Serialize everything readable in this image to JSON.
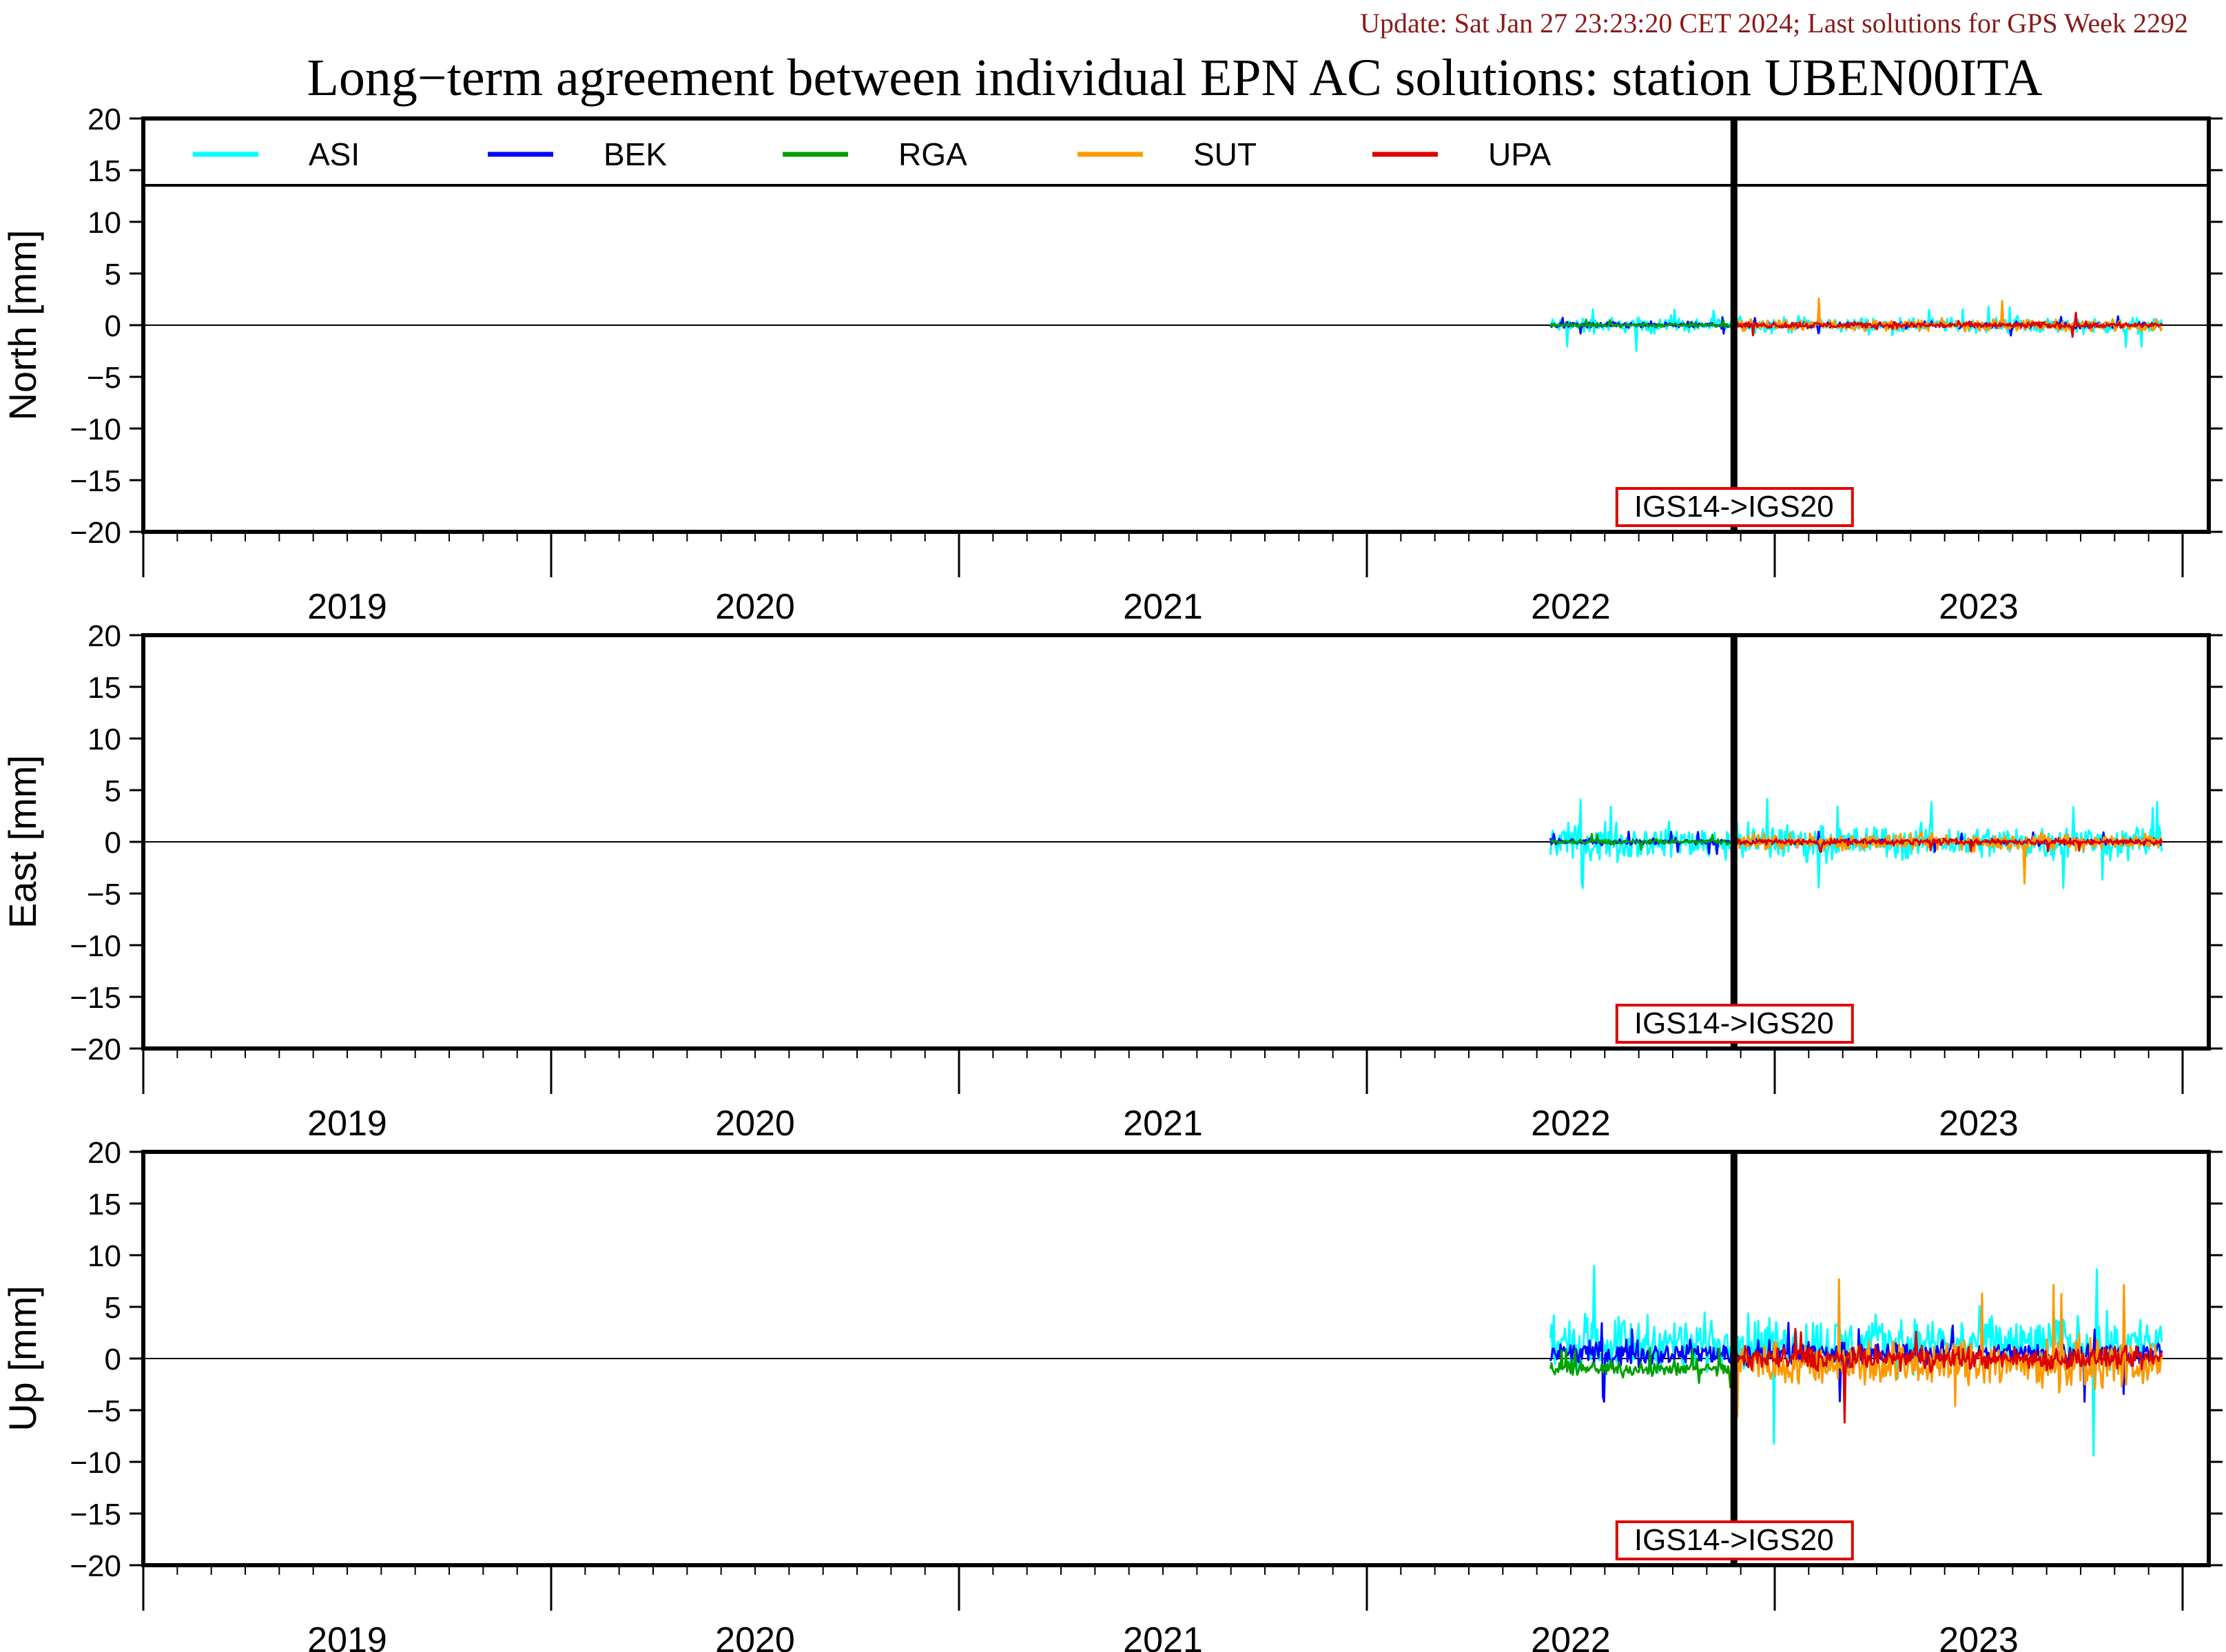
{
  "header": {
    "update_text": "Update: Sat Jan 27 23:23:20 CET 2024; Last solutions for GPS Week 2292",
    "title": "Long−term agreement between individual EPN AC solutions: station UBEN00ITA"
  },
  "colors": {
    "ASI": "#00ffff",
    "BEK": "#0000ff",
    "RGA": "#00a000",
    "SUT": "#ff9900",
    "UPA": "#dd0000",
    "update_text": "#8b1a1a",
    "annotation_box": "#e00000"
  },
  "chart_data": [
    {
      "type": "line",
      "ylabel": "North [mm]",
      "ylim": [
        -20,
        20
      ],
      "yticks": [
        20,
        15,
        10,
        5,
        0,
        -5,
        -10,
        -15,
        -20
      ],
      "ytick_labels": [
        "20",
        "15",
        "10",
        "5",
        "0",
        "−5",
        "−10",
        "−15",
        "−20"
      ],
      "xlim": [
        2018.5,
        2023.5
      ],
      "xtick_labels": [
        "2019",
        "2020",
        "2021",
        "2022",
        "2023"
      ],
      "legend": {
        "placement": "top",
        "entries": [
          "ASI",
          "BEK",
          "RGA",
          "SUT",
          "UPA"
        ]
      },
      "annotation": {
        "text": "IGS14->IGS20",
        "x": 2022.4
      },
      "series": [
        {
          "name": "ASI",
          "x_start": 2021.95,
          "x_end": 2023.45,
          "mean": 0,
          "amplitude": 1.0,
          "spike_min": -2.5,
          "spike_max": 1.8
        },
        {
          "name": "BEK",
          "x_start": 2021.95,
          "x_end": 2023.45,
          "mean": 0,
          "amplitude": 0.4,
          "spike_min": -1.0,
          "spike_max": 0.9
        },
        {
          "name": "RGA",
          "x_start": 2021.95,
          "x_end": 2022.4,
          "mean": 0,
          "amplitude": 0.3,
          "spike_min": -0.6,
          "spike_max": 0.6
        },
        {
          "name": "SUT",
          "x_start": 2022.4,
          "x_end": 2023.45,
          "mean": 0,
          "amplitude": 0.7,
          "spike_min": -1.5,
          "spike_max": 2.8
        },
        {
          "name": "UPA",
          "x_start": 2022.4,
          "x_end": 2023.45,
          "mean": 0,
          "amplitude": 0.4,
          "spike_min": -1.2,
          "spike_max": 1.5
        }
      ]
    },
    {
      "type": "line",
      "ylabel": "East [mm]",
      "ylim": [
        -20,
        20
      ],
      "yticks": [
        20,
        15,
        10,
        5,
        0,
        -5,
        -10,
        -15,
        -20
      ],
      "ytick_labels": [
        "20",
        "15",
        "10",
        "5",
        "0",
        "−5",
        "−10",
        "−15",
        "−20"
      ],
      "xlim": [
        2018.5,
        2023.5
      ],
      "xtick_labels": [
        "2019",
        "2020",
        "2021",
        "2022",
        "2023"
      ],
      "annotation": {
        "text": "IGS14->IGS20",
        "x": 2022.4
      },
      "series": [
        {
          "name": "ASI",
          "x_start": 2021.95,
          "x_end": 2023.45,
          "mean": 0,
          "amplitude": 2.2,
          "spike_min": -4.8,
          "spike_max": 4.2
        },
        {
          "name": "BEK",
          "x_start": 2021.95,
          "x_end": 2023.45,
          "mean": 0,
          "amplitude": 0.4,
          "spike_min": -1.2,
          "spike_max": 1.0
        },
        {
          "name": "RGA",
          "x_start": 2021.95,
          "x_end": 2022.4,
          "mean": 0,
          "amplitude": 0.3,
          "spike_min": -0.8,
          "spike_max": 0.8
        },
        {
          "name": "SUT",
          "x_start": 2022.4,
          "x_end": 2023.45,
          "mean": 0,
          "amplitude": 1.1,
          "spike_min": -4.2,
          "spike_max": 5.0
        },
        {
          "name": "UPA",
          "x_start": 2022.4,
          "x_end": 2023.45,
          "mean": 0,
          "amplitude": 0.4,
          "spike_min": -1.0,
          "spike_max": 1.0
        }
      ]
    },
    {
      "type": "line",
      "ylabel": "Up [mm]",
      "ylim": [
        -20,
        20
      ],
      "yticks": [
        20,
        15,
        10,
        5,
        0,
        -5,
        -10,
        -15,
        -20
      ],
      "ytick_labels": [
        "20",
        "15",
        "10",
        "5",
        "0",
        "−5",
        "−10",
        "−15",
        "−20"
      ],
      "xlim": [
        2018.5,
        2023.5
      ],
      "xtick_labels": [
        "2019",
        "2020",
        "2021",
        "2022",
        "2023"
      ],
      "annotation": {
        "text": "IGS14->IGS20",
        "x": 2022.4
      },
      "series": [
        {
          "name": "ASI",
          "x_start": 2021.95,
          "x_end": 2023.45,
          "mean": 1.5,
          "amplitude": 3.5,
          "spike_min": -10.0,
          "spike_max": 10.8
        },
        {
          "name": "BEK",
          "x_start": 2021.95,
          "x_end": 2023.45,
          "mean": 0.5,
          "amplitude": 1.5,
          "spike_min": -4.5,
          "spike_max": 3.5
        },
        {
          "name": "RGA",
          "x_start": 2021.95,
          "x_end": 2022.4,
          "mean": -1.0,
          "amplitude": 1.0,
          "spike_min": -3.0,
          "spike_max": 1.0
        },
        {
          "name": "SUT",
          "x_start": 2022.4,
          "x_end": 2023.45,
          "mean": -0.5,
          "amplitude": 3.0,
          "spike_min": -5.8,
          "spike_max": 7.8
        },
        {
          "name": "UPA",
          "x_start": 2022.4,
          "x_end": 2023.45,
          "mean": 0,
          "amplitude": 1.5,
          "spike_min": -6.5,
          "spike_max": 3.0
        }
      ]
    }
  ]
}
